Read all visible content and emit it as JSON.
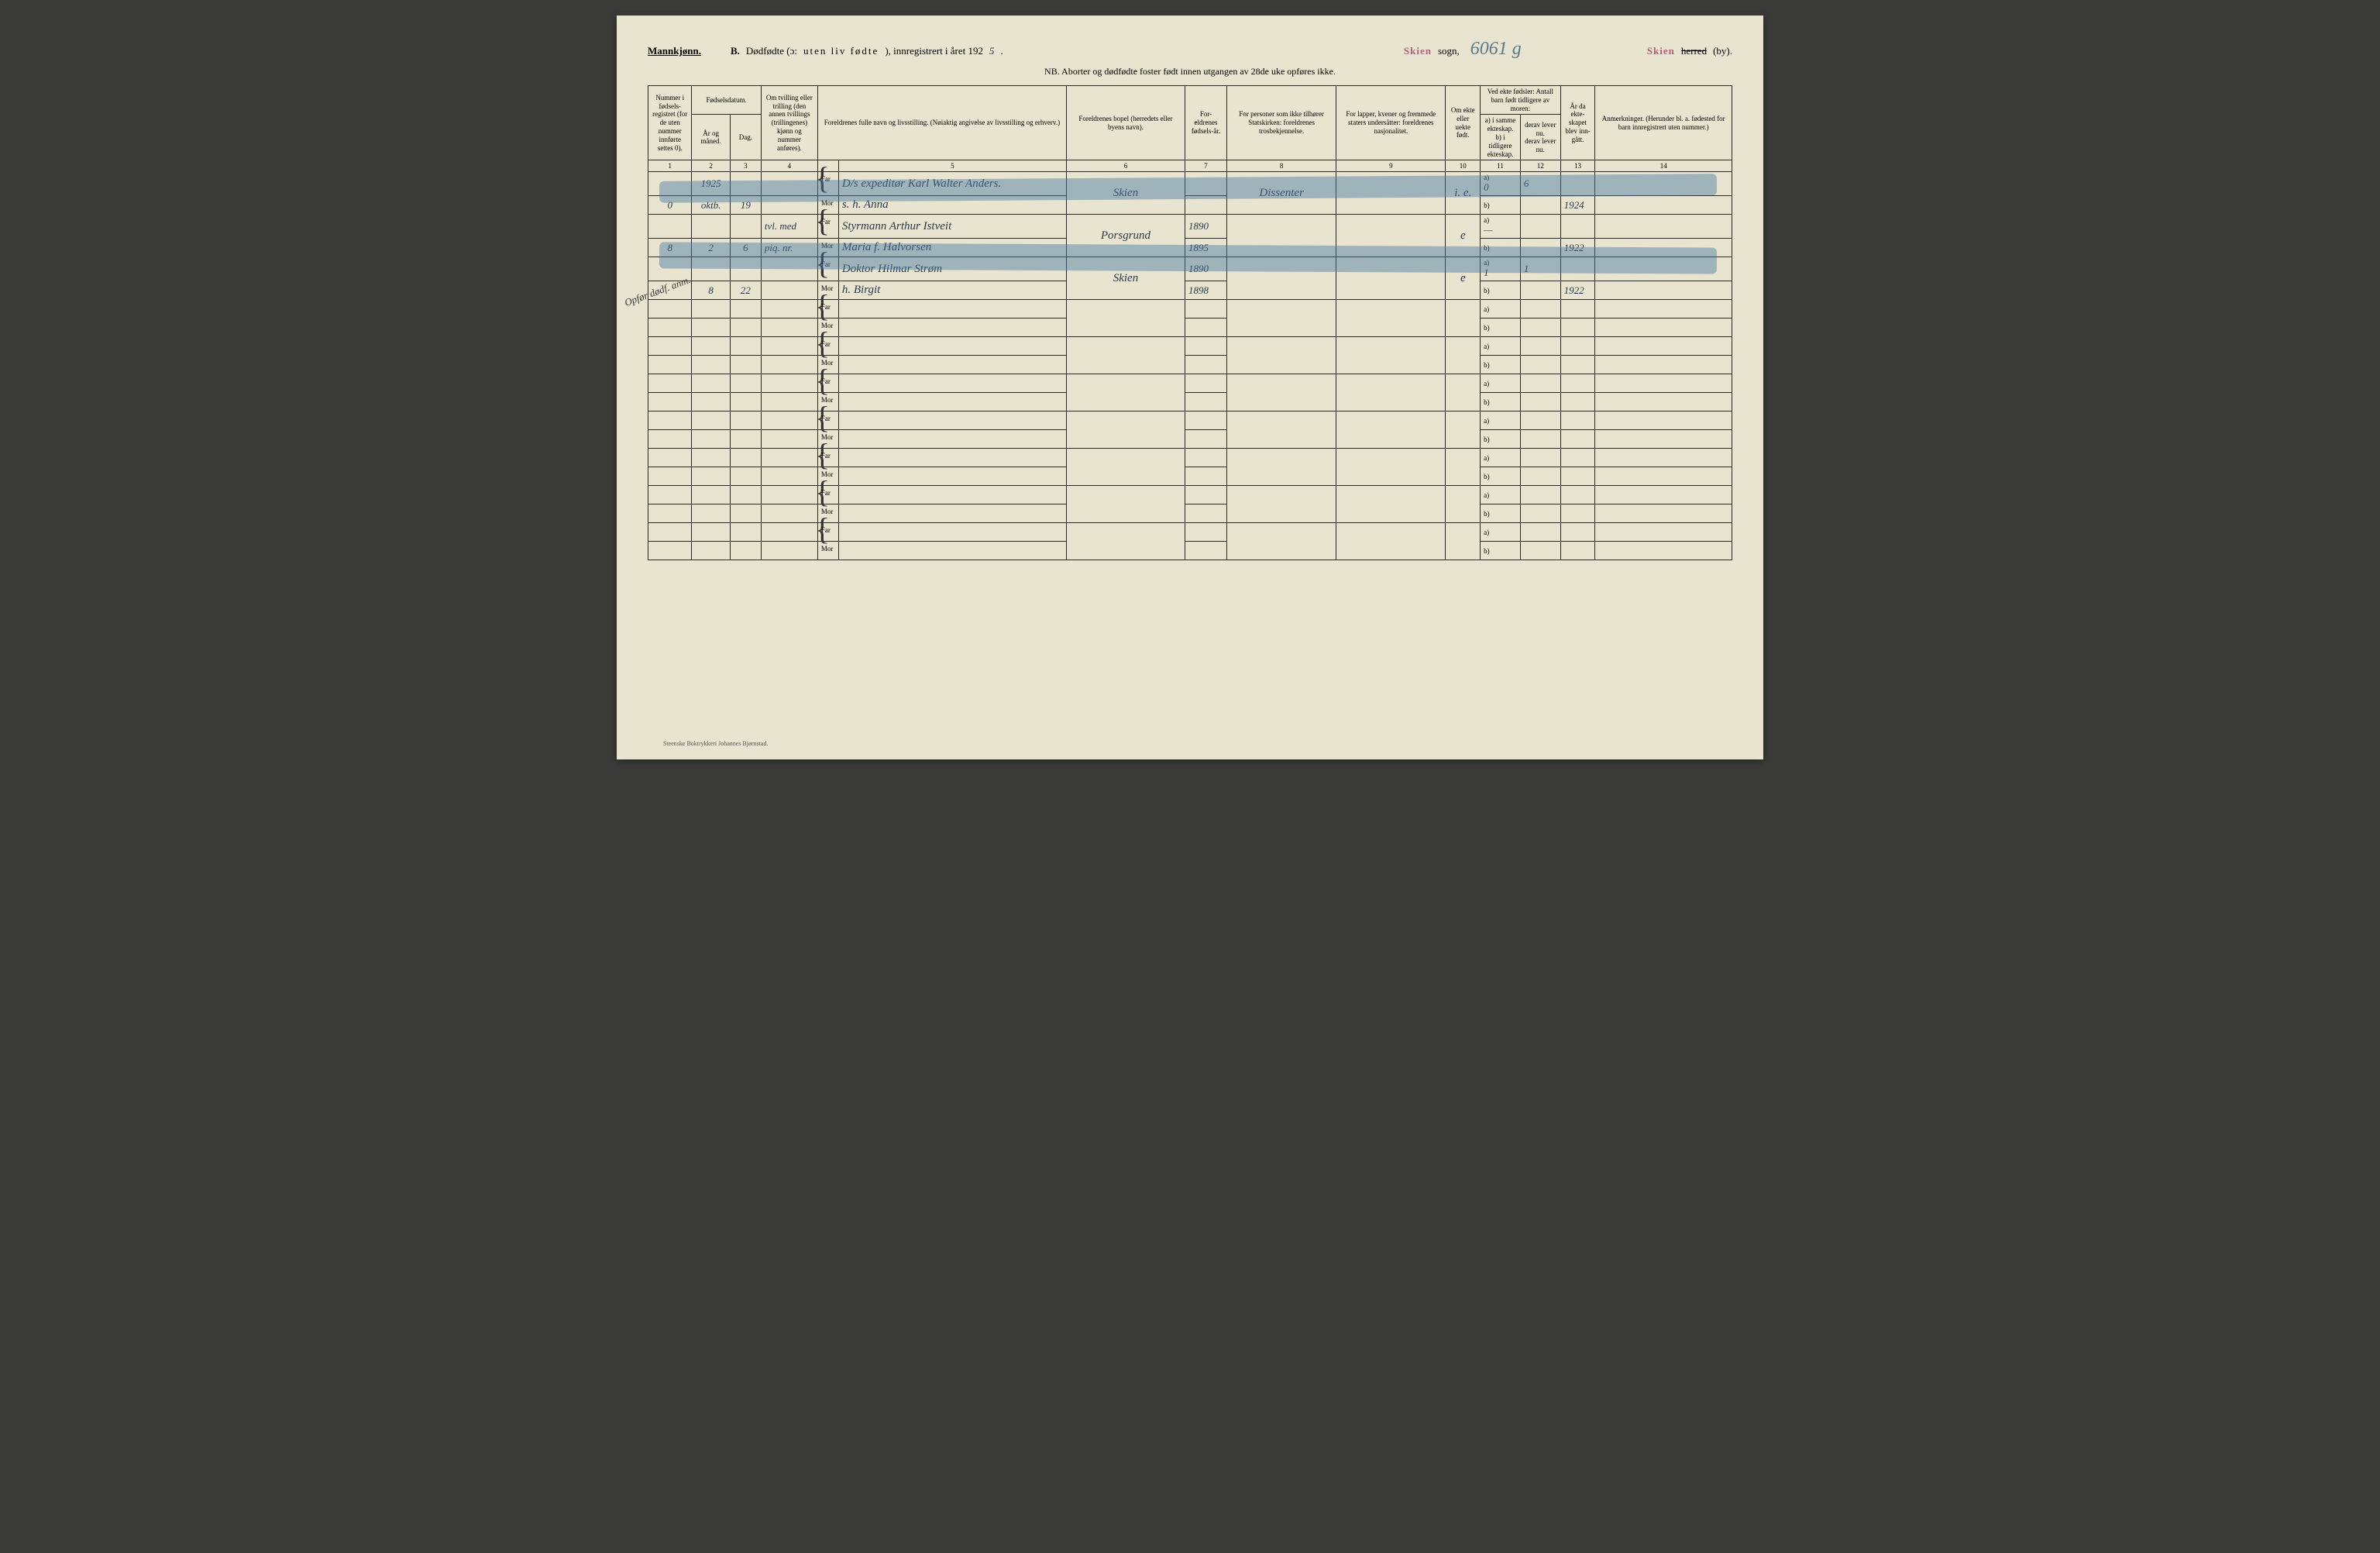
{
  "header": {
    "gender": "Mannkjønn.",
    "section_letter": "B.",
    "section_title_1": "Dødfødte (ɔ:",
    "section_title_spaced": "uten liv fødte",
    "section_title_2": "), innregistrert i året 192",
    "year_digit": "5",
    "stamp_sogn": "Skien",
    "sogn_label": "sogn,",
    "handwritten_number": "6061 g",
    "stamp_herred": "Skien",
    "herred_struck": "herred",
    "by_label": "(by).",
    "nb_text": "NB. Aborter og dødfødte foster født innen utgangen av 28de uke opføres ikke."
  },
  "columns": {
    "c1": "Nummer i fødsels-registret (for de uten nummer innførte settes 0).",
    "c2_group": "Fødselsdatum.",
    "c2": "År og måned.",
    "c3": "Dag.",
    "c4": "Om tvilling eller trilling (den annen tvillings (trillingenes) kjønn og nummer anføres).",
    "c5": "Foreldrenes fulle navn og livsstilling. (Nøiaktig angivelse av livsstilling og erhverv.)",
    "c6": "Foreldrenes bopel (herredets eller byens navn).",
    "c7": "For-eldrenes fødsels-år.",
    "c8": "For personer som ikke tilhører Statskirken: foreldrenes trosbekjennelse.",
    "c9": "For lapper, kvener og fremmede staters undersåtter: foreldrenes nasjonalitet.",
    "c10": "Om ekte eller uekte født.",
    "c11_group": "Ved ekte fødsler: Antall barn født tidligere av moren:",
    "c11": "a) i samme ekteskap.\nb) i tidligere ekteskap.",
    "c12": "derav lever nu.\nderav lever nu.",
    "c13": "År da ekte-skapet blev inn-gått.",
    "c14": "Anmerkninger. (Herunder bl. a. fødested for barn innregistrert uten nummer.)"
  },
  "colnums": [
    "1",
    "2",
    "3",
    "4",
    "",
    "5",
    "6",
    "7",
    "8",
    "9",
    "10",
    "11",
    "12",
    "13",
    "14"
  ],
  "labels": {
    "far": "Far",
    "mor": "Mor",
    "a": "a)",
    "b": "b)"
  },
  "entries": [
    {
      "num": "0",
      "year_top": "1925",
      "year_month": "oktb.",
      "day": "19",
      "tvilling": "",
      "far": "D/s expeditør Karl Walter Anders.",
      "mor": "s. h. Anna",
      "bopel": "Skien",
      "far_aar": "",
      "mor_aar": "",
      "tros": "Dissenter",
      "nasj": "",
      "ekte": "i. e.",
      "a_val": "0",
      "a_derav": "6",
      "b_val": "",
      "b_derav": "",
      "ekte_aar": "1924",
      "anm": "",
      "struck": true
    },
    {
      "num": "8",
      "year_month": "2",
      "day": "6",
      "tvilling": "tvl. med piq. nr.",
      "far": "Styrmann Arthur Istveit",
      "mor": "Maria f. Halvorsen",
      "bopel": "Porsgrund",
      "far_aar": "1890",
      "mor_aar": "1895",
      "tros": "",
      "nasj": "",
      "ekte": "e",
      "a_val": "—",
      "a_derav": "",
      "b_val": "",
      "b_derav": "",
      "ekte_aar": "1922",
      "anm": "",
      "struck": true
    },
    {
      "num": "",
      "year_month": "8",
      "day": "22",
      "tvilling": "",
      "far": "Doktor Hilmar Strøm",
      "mor": "h. Birgit",
      "bopel": "Skien",
      "far_aar": "1890",
      "mor_aar": "1898",
      "tros": "",
      "nasj": "",
      "ekte": "e",
      "a_val": "1",
      "a_derav": "1",
      "b_val": "",
      "b_derav": "",
      "ekte_aar": "1922",
      "anm": "",
      "struck": false,
      "margin_note": "Opfør dødf. anm."
    }
  ],
  "colors": {
    "paper": "#e8e4d0",
    "ink": "#2a2a2a",
    "stamp": "#b0607a",
    "pencil_blue": "rgba(70,120,160,0.45)",
    "handwriting": "#2a3a4a"
  },
  "footer": "Steenske Boktrykkeri Johannes Bjørnstad.",
  "blank_row_count": 7
}
